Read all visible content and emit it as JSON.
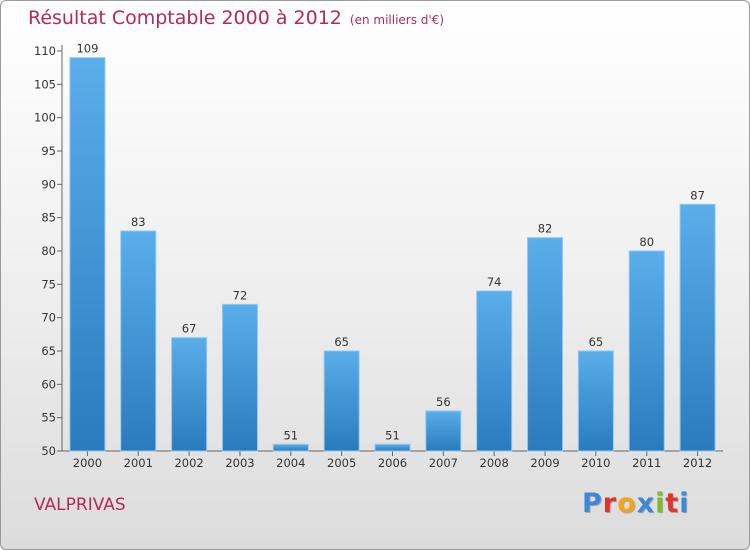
{
  "title": "Résultat Comptable 2000 à 2012",
  "subtitle": "(en milliers d'€)",
  "commune": "VALPRIVAS",
  "logo": {
    "letters": [
      "P",
      "r",
      "o",
      "x",
      "i",
      "t",
      "i"
    ],
    "colors": [
      "#3b88d8",
      "#e0352b",
      "#f2a51a",
      "#3b88d8",
      "#7dbb2a",
      "#e0352b",
      "#3b88d8"
    ]
  },
  "colors": {
    "title": "#b22a58",
    "bar_top": "#5aaeea",
    "bar_bottom": "#2a7bbd"
  },
  "chart_data": {
    "type": "bar",
    "categories": [
      "2000",
      "2001",
      "2002",
      "2003",
      "2004",
      "2005",
      "2006",
      "2007",
      "2008",
      "2009",
      "2010",
      "2011",
      "2012"
    ],
    "values": [
      109,
      83,
      67,
      72,
      51,
      65,
      51,
      56,
      74,
      82,
      65,
      80,
      87
    ],
    "ylim": [
      50,
      110
    ],
    "yticks": [
      50,
      55,
      60,
      65,
      70,
      75,
      80,
      85,
      90,
      95,
      100,
      105,
      110
    ],
    "grid": false,
    "legend": "none"
  }
}
